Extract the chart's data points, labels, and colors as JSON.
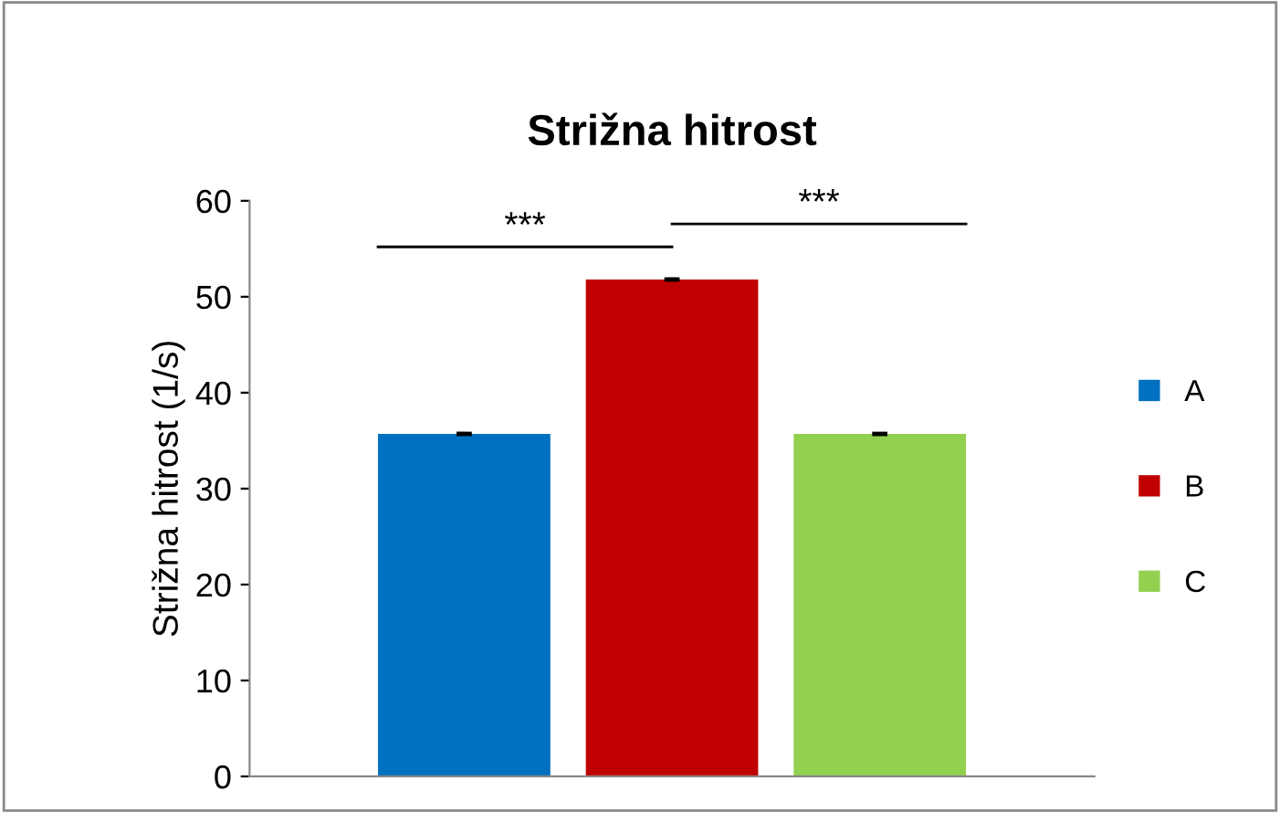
{
  "chart_data": {
    "type": "bar",
    "title": "Strižna hitrost",
    "ylabel": "Strižna hitrost (1/s)",
    "categories": [
      null
    ],
    "series": [
      {
        "name": "A",
        "color": "#0070c0",
        "values": [
          35.7
        ],
        "errors": [
          0.1
        ]
      },
      {
        "name": "B",
        "color": "#c00000",
        "values": [
          51.8
        ],
        "errors": [
          0.1
        ]
      },
      {
        "name": "C",
        "color": "#92d050",
        "values": [
          35.7
        ],
        "errors": [
          0.1
        ]
      }
    ],
    "ylim": [
      0,
      60
    ],
    "yticks": [
      0,
      10,
      20,
      30,
      40,
      50,
      60
    ],
    "annotations": [
      "***",
      "***"
    ],
    "grid": false,
    "legend": "right"
  }
}
